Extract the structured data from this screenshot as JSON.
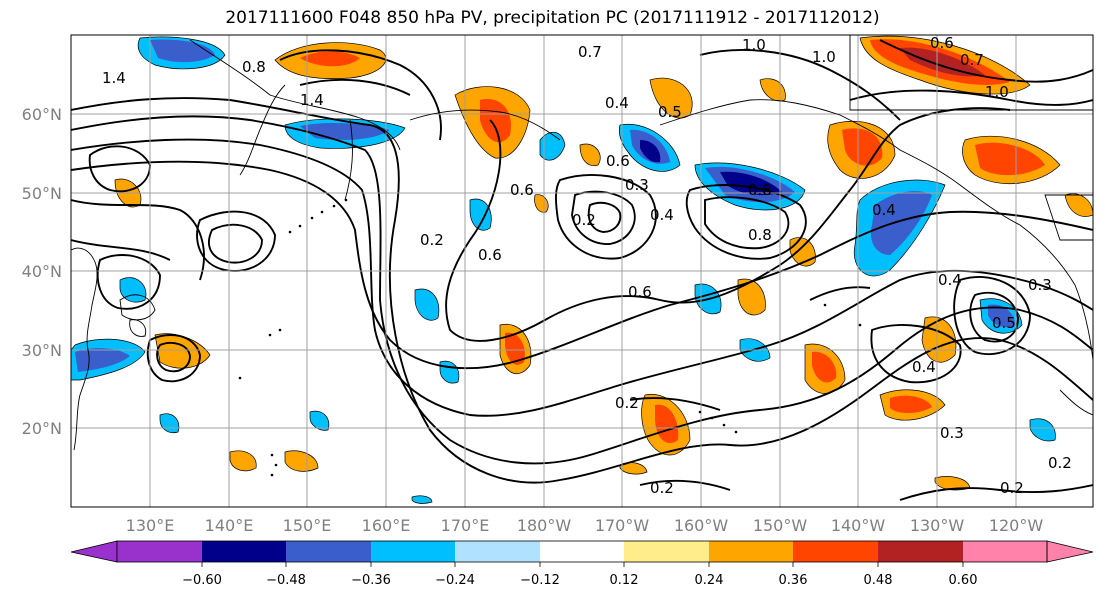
{
  "title": "2017111600 F048 850 hPa PV, precipitation PC (2017111912 - 2017112012)",
  "map": {
    "lat_labels": [
      "60°N",
      "50°N",
      "40°N",
      "30°N",
      "20°N"
    ],
    "lon_labels": [
      "130°E",
      "140°E",
      "150°E",
      "160°E",
      "170°E",
      "180°W",
      "170°W",
      "160°W",
      "150°W",
      "140°W",
      "130°W",
      "120°W"
    ],
    "contour_labels": [
      "1.4",
      "0.8",
      "1.4",
      "0.7",
      "1.0",
      "1.0",
      "0.6",
      "0.7",
      "0.4",
      "0.5",
      "0.6",
      "0.8",
      "0.3",
      "0.4",
      "0.6",
      "0.6",
      "0.8",
      "0.2",
      "0.4",
      "0.6",
      "0.3",
      "0.4",
      "0.5",
      "0.4",
      "0.3",
      "0.2",
      "0.2",
      "0.2",
      "1.0",
      "0.2",
      "0.2"
    ]
  },
  "colorbar": {
    "tick_labels": [
      "−0.60",
      "−0.48",
      "−0.36",
      "−0.24",
      "−0.12",
      "0.12",
      "0.24",
      "0.36",
      "0.48",
      "0.60"
    ],
    "colors": [
      "#9932cc",
      "#00008b",
      "#3a5fcd",
      "#00bfff",
      "#b0e2ff",
      "#ffffff",
      "#ffec8b",
      "#ffa500",
      "#ff4500",
      "#b22222",
      "#ff82ab"
    ]
  }
}
